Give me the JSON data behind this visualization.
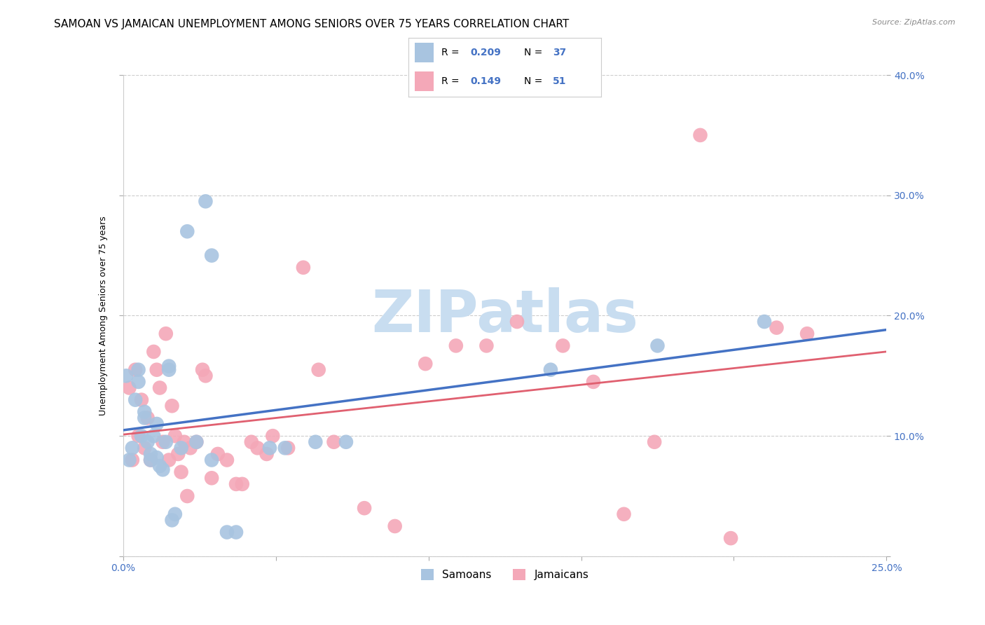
{
  "title": "SAMOAN VS JAMAICAN UNEMPLOYMENT AMONG SENIORS OVER 75 YEARS CORRELATION CHART",
  "source": "Source: ZipAtlas.com",
  "ylabel": "Unemployment Among Seniors over 75 years",
  "xlim": [
    0.0,
    0.25
  ],
  "ylim": [
    0.0,
    0.4
  ],
  "xticks": [
    0.0,
    0.05,
    0.1,
    0.15,
    0.2,
    0.25
  ],
  "yticks": [
    0.0,
    0.1,
    0.2,
    0.3,
    0.4
  ],
  "background_color": "#ffffff",
  "grid_color": "#cccccc",
  "samoan_color": "#a8c4e0",
  "jamaican_color": "#f4a8b8",
  "samoan_line_color": "#4472c4",
  "jamaican_line_color": "#e06070",
  "watermark_text": "ZIPatlas",
  "watermark_color": "#c8ddf0",
  "title_fontsize": 11,
  "axis_label_fontsize": 9,
  "tick_fontsize": 10,
  "samoan_x": [
    0.001,
    0.002,
    0.003,
    0.004,
    0.005,
    0.005,
    0.006,
    0.007,
    0.007,
    0.008,
    0.009,
    0.009,
    0.01,
    0.011,
    0.011,
    0.012,
    0.013,
    0.014,
    0.015,
    0.015,
    0.016,
    0.017,
    0.019,
    0.021,
    0.024,
    0.027,
    0.029,
    0.029,
    0.034,
    0.037,
    0.048,
    0.053,
    0.063,
    0.073,
    0.14,
    0.175,
    0.21
  ],
  "samoan_y": [
    0.15,
    0.08,
    0.09,
    0.13,
    0.155,
    0.145,
    0.1,
    0.12,
    0.115,
    0.095,
    0.085,
    0.08,
    0.1,
    0.11,
    0.082,
    0.075,
    0.072,
    0.095,
    0.155,
    0.158,
    0.03,
    0.035,
    0.09,
    0.27,
    0.095,
    0.295,
    0.25,
    0.08,
    0.02,
    0.02,
    0.09,
    0.09,
    0.095,
    0.095,
    0.155,
    0.175,
    0.195
  ],
  "jamaican_x": [
    0.002,
    0.003,
    0.004,
    0.005,
    0.006,
    0.007,
    0.008,
    0.009,
    0.01,
    0.011,
    0.012,
    0.013,
    0.014,
    0.015,
    0.016,
    0.017,
    0.018,
    0.019,
    0.02,
    0.021,
    0.022,
    0.024,
    0.026,
    0.027,
    0.029,
    0.031,
    0.034,
    0.037,
    0.039,
    0.042,
    0.044,
    0.047,
    0.049,
    0.054,
    0.059,
    0.064,
    0.069,
    0.079,
    0.089,
    0.099,
    0.109,
    0.119,
    0.129,
    0.144,
    0.154,
    0.164,
    0.174,
    0.189,
    0.199,
    0.214,
    0.224
  ],
  "jamaican_y": [
    0.14,
    0.08,
    0.155,
    0.1,
    0.13,
    0.09,
    0.115,
    0.08,
    0.17,
    0.155,
    0.14,
    0.095,
    0.185,
    0.08,
    0.125,
    0.1,
    0.085,
    0.07,
    0.095,
    0.05,
    0.09,
    0.095,
    0.155,
    0.15,
    0.065,
    0.085,
    0.08,
    0.06,
    0.06,
    0.095,
    0.09,
    0.085,
    0.1,
    0.09,
    0.24,
    0.155,
    0.095,
    0.04,
    0.025,
    0.16,
    0.175,
    0.175,
    0.195,
    0.175,
    0.145,
    0.035,
    0.095,
    0.35,
    0.015,
    0.19,
    0.185
  ]
}
